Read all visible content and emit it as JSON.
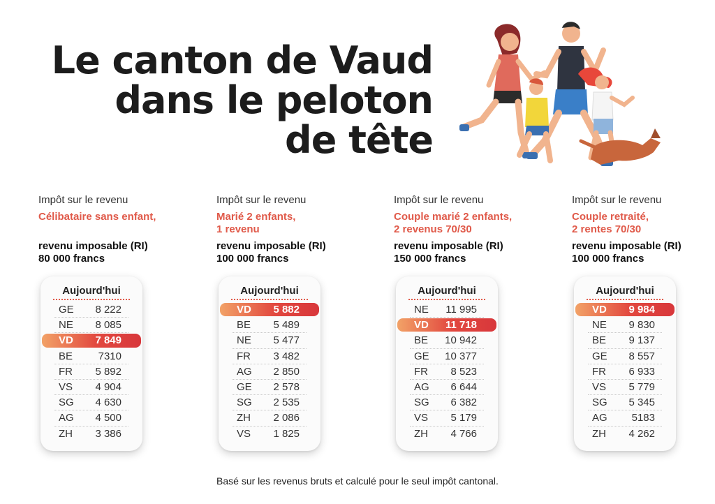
{
  "title": [
    "Le canton de Vaud",
    "dans le peloton",
    "de tête"
  ],
  "colors": {
    "accent": "#e05a4a",
    "highlight_start": "#f2a267",
    "highlight_end": "#d8373b"
  },
  "columns": [
    {
      "label": "Impôt sur le revenu",
      "sub": [
        "Célibataire sans enfant,"
      ],
      "ri": [
        "revenu imposable (RI)",
        "80 000 francs"
      ],
      "card_title": "Aujourd'hui",
      "rows": [
        {
          "canton": "GE",
          "value": "8 222",
          "highlight": false
        },
        {
          "canton": "NE",
          "value": "8 085",
          "highlight": false
        },
        {
          "canton": "VD",
          "value": "7 849",
          "highlight": true
        },
        {
          "canton": "BE",
          "value": "7310",
          "highlight": false
        },
        {
          "canton": "FR",
          "value": "5 892",
          "highlight": false
        },
        {
          "canton": "VS",
          "value": "4 904",
          "highlight": false
        },
        {
          "canton": "SG",
          "value": "4 630",
          "highlight": false
        },
        {
          "canton": "AG",
          "value": "4 500",
          "highlight": false
        },
        {
          "canton": "ZH",
          "value": "3 386",
          "highlight": false
        }
      ]
    },
    {
      "label": "Impôt sur le revenu",
      "sub": [
        "Marié 2 enfants,",
        "1 revenu"
      ],
      "ri": [
        "revenu imposable (RI)",
        "100 000 francs"
      ],
      "card_title": "Aujourd'hui",
      "rows": [
        {
          "canton": "VD",
          "value": "5 882",
          "highlight": true
        },
        {
          "canton": "BE",
          "value": "5 489",
          "highlight": false
        },
        {
          "canton": "NE",
          "value": "5 477",
          "highlight": false
        },
        {
          "canton": "FR",
          "value": "3 482",
          "highlight": false
        },
        {
          "canton": "AG",
          "value": "2 850",
          "highlight": false
        },
        {
          "canton": "GE",
          "value": "2 578",
          "highlight": false
        },
        {
          "canton": "SG",
          "value": "2 535",
          "highlight": false
        },
        {
          "canton": "ZH",
          "value": "2 086",
          "highlight": false
        },
        {
          "canton": "VS",
          "value": "1 825",
          "highlight": false
        }
      ]
    },
    {
      "label": "Impôt sur le revenu",
      "sub": [
        "Couple marié 2 enfants,",
        "2 revenus 70/30"
      ],
      "ri": [
        "revenu imposable (RI)",
        "150 000 francs"
      ],
      "card_title": "Aujourd'hui",
      "rows": [
        {
          "canton": "NE",
          "value": "11 995",
          "highlight": false
        },
        {
          "canton": "VD",
          "value": "11 718",
          "highlight": true
        },
        {
          "canton": "BE",
          "value": "10 942",
          "highlight": false
        },
        {
          "canton": "GE",
          "value": "10 377",
          "highlight": false
        },
        {
          "canton": "FR",
          "value": "8 523",
          "highlight": false
        },
        {
          "canton": "AG",
          "value": "6 644",
          "highlight": false
        },
        {
          "canton": "SG",
          "value": "6 382",
          "highlight": false
        },
        {
          "canton": "VS",
          "value": "5 179",
          "highlight": false
        },
        {
          "canton": "ZH",
          "value": "4 766",
          "highlight": false
        }
      ]
    },
    {
      "label": "Impôt sur le revenu",
      "sub": [
        "Couple retraité,",
        "2 rentes 70/30"
      ],
      "ri": [
        "revenu imposable (RI)",
        "100 000 francs"
      ],
      "card_title": "Aujourd'hui",
      "rows": [
        {
          "canton": "VD",
          "value": "9 984",
          "highlight": true
        },
        {
          "canton": "NE",
          "value": "9 830",
          "highlight": false
        },
        {
          "canton": "BE",
          "value": "9 137",
          "highlight": false
        },
        {
          "canton": "GE",
          "value": "8 557",
          "highlight": false
        },
        {
          "canton": "FR",
          "value": "6 933",
          "highlight": false
        },
        {
          "canton": "VS",
          "value": "5 779",
          "highlight": false
        },
        {
          "canton": "SG",
          "value": "5 345",
          "highlight": false
        },
        {
          "canton": "AG",
          "value": "5183",
          "highlight": false
        },
        {
          "canton": "ZH",
          "value": "4 262",
          "highlight": false
        }
      ]
    }
  ],
  "footnote": "Basé sur les revenus bruts et calculé pour le seul impôt cantonal."
}
